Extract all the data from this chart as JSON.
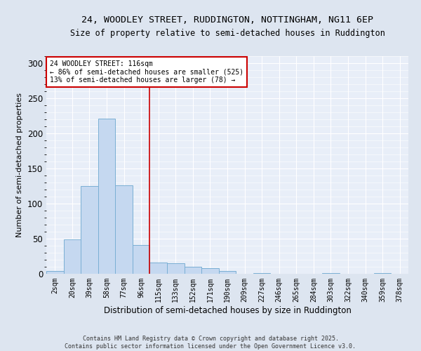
{
  "title_line1": "24, WOODLEY STREET, RUDDINGTON, NOTTINGHAM, NG11 6EP",
  "title_line2": "Size of property relative to semi-detached houses in Ruddington",
  "xlabel": "Distribution of semi-detached houses by size in Ruddington",
  "ylabel": "Number of semi-detached properties",
  "categories": [
    "2sqm",
    "20sqm",
    "39sqm",
    "58sqm",
    "77sqm",
    "96sqm",
    "115sqm",
    "133sqm",
    "152sqm",
    "171sqm",
    "190sqm",
    "209sqm",
    "227sqm",
    "246sqm",
    "265sqm",
    "284sqm",
    "303sqm",
    "322sqm",
    "340sqm",
    "359sqm",
    "378sqm"
  ],
  "values": [
    4,
    49,
    125,
    221,
    126,
    41,
    16,
    15,
    10,
    8,
    4,
    0,
    1,
    0,
    0,
    0,
    1,
    0,
    0,
    1,
    0
  ],
  "bar_color": "#c5d8f0",
  "bar_edge_color": "#7aafd4",
  "vline_color": "#cc0000",
  "vline_x_index": 6,
  "annotation_text_line1": "24 WOODLEY STREET: 116sqm",
  "annotation_text_line2": "← 86% of semi-detached houses are smaller (525)",
  "annotation_text_line3": "13% of semi-detached houses are larger (78) →",
  "ylim": [
    0,
    310
  ],
  "yticks": [
    0,
    50,
    100,
    150,
    200,
    250,
    300
  ],
  "footer_line1": "Contains HM Land Registry data © Crown copyright and database right 2025.",
  "footer_line2": "Contains public sector information licensed under the Open Government Licence v3.0.",
  "bg_color": "#dde5f0",
  "plot_bg_color": "#e8eef8"
}
